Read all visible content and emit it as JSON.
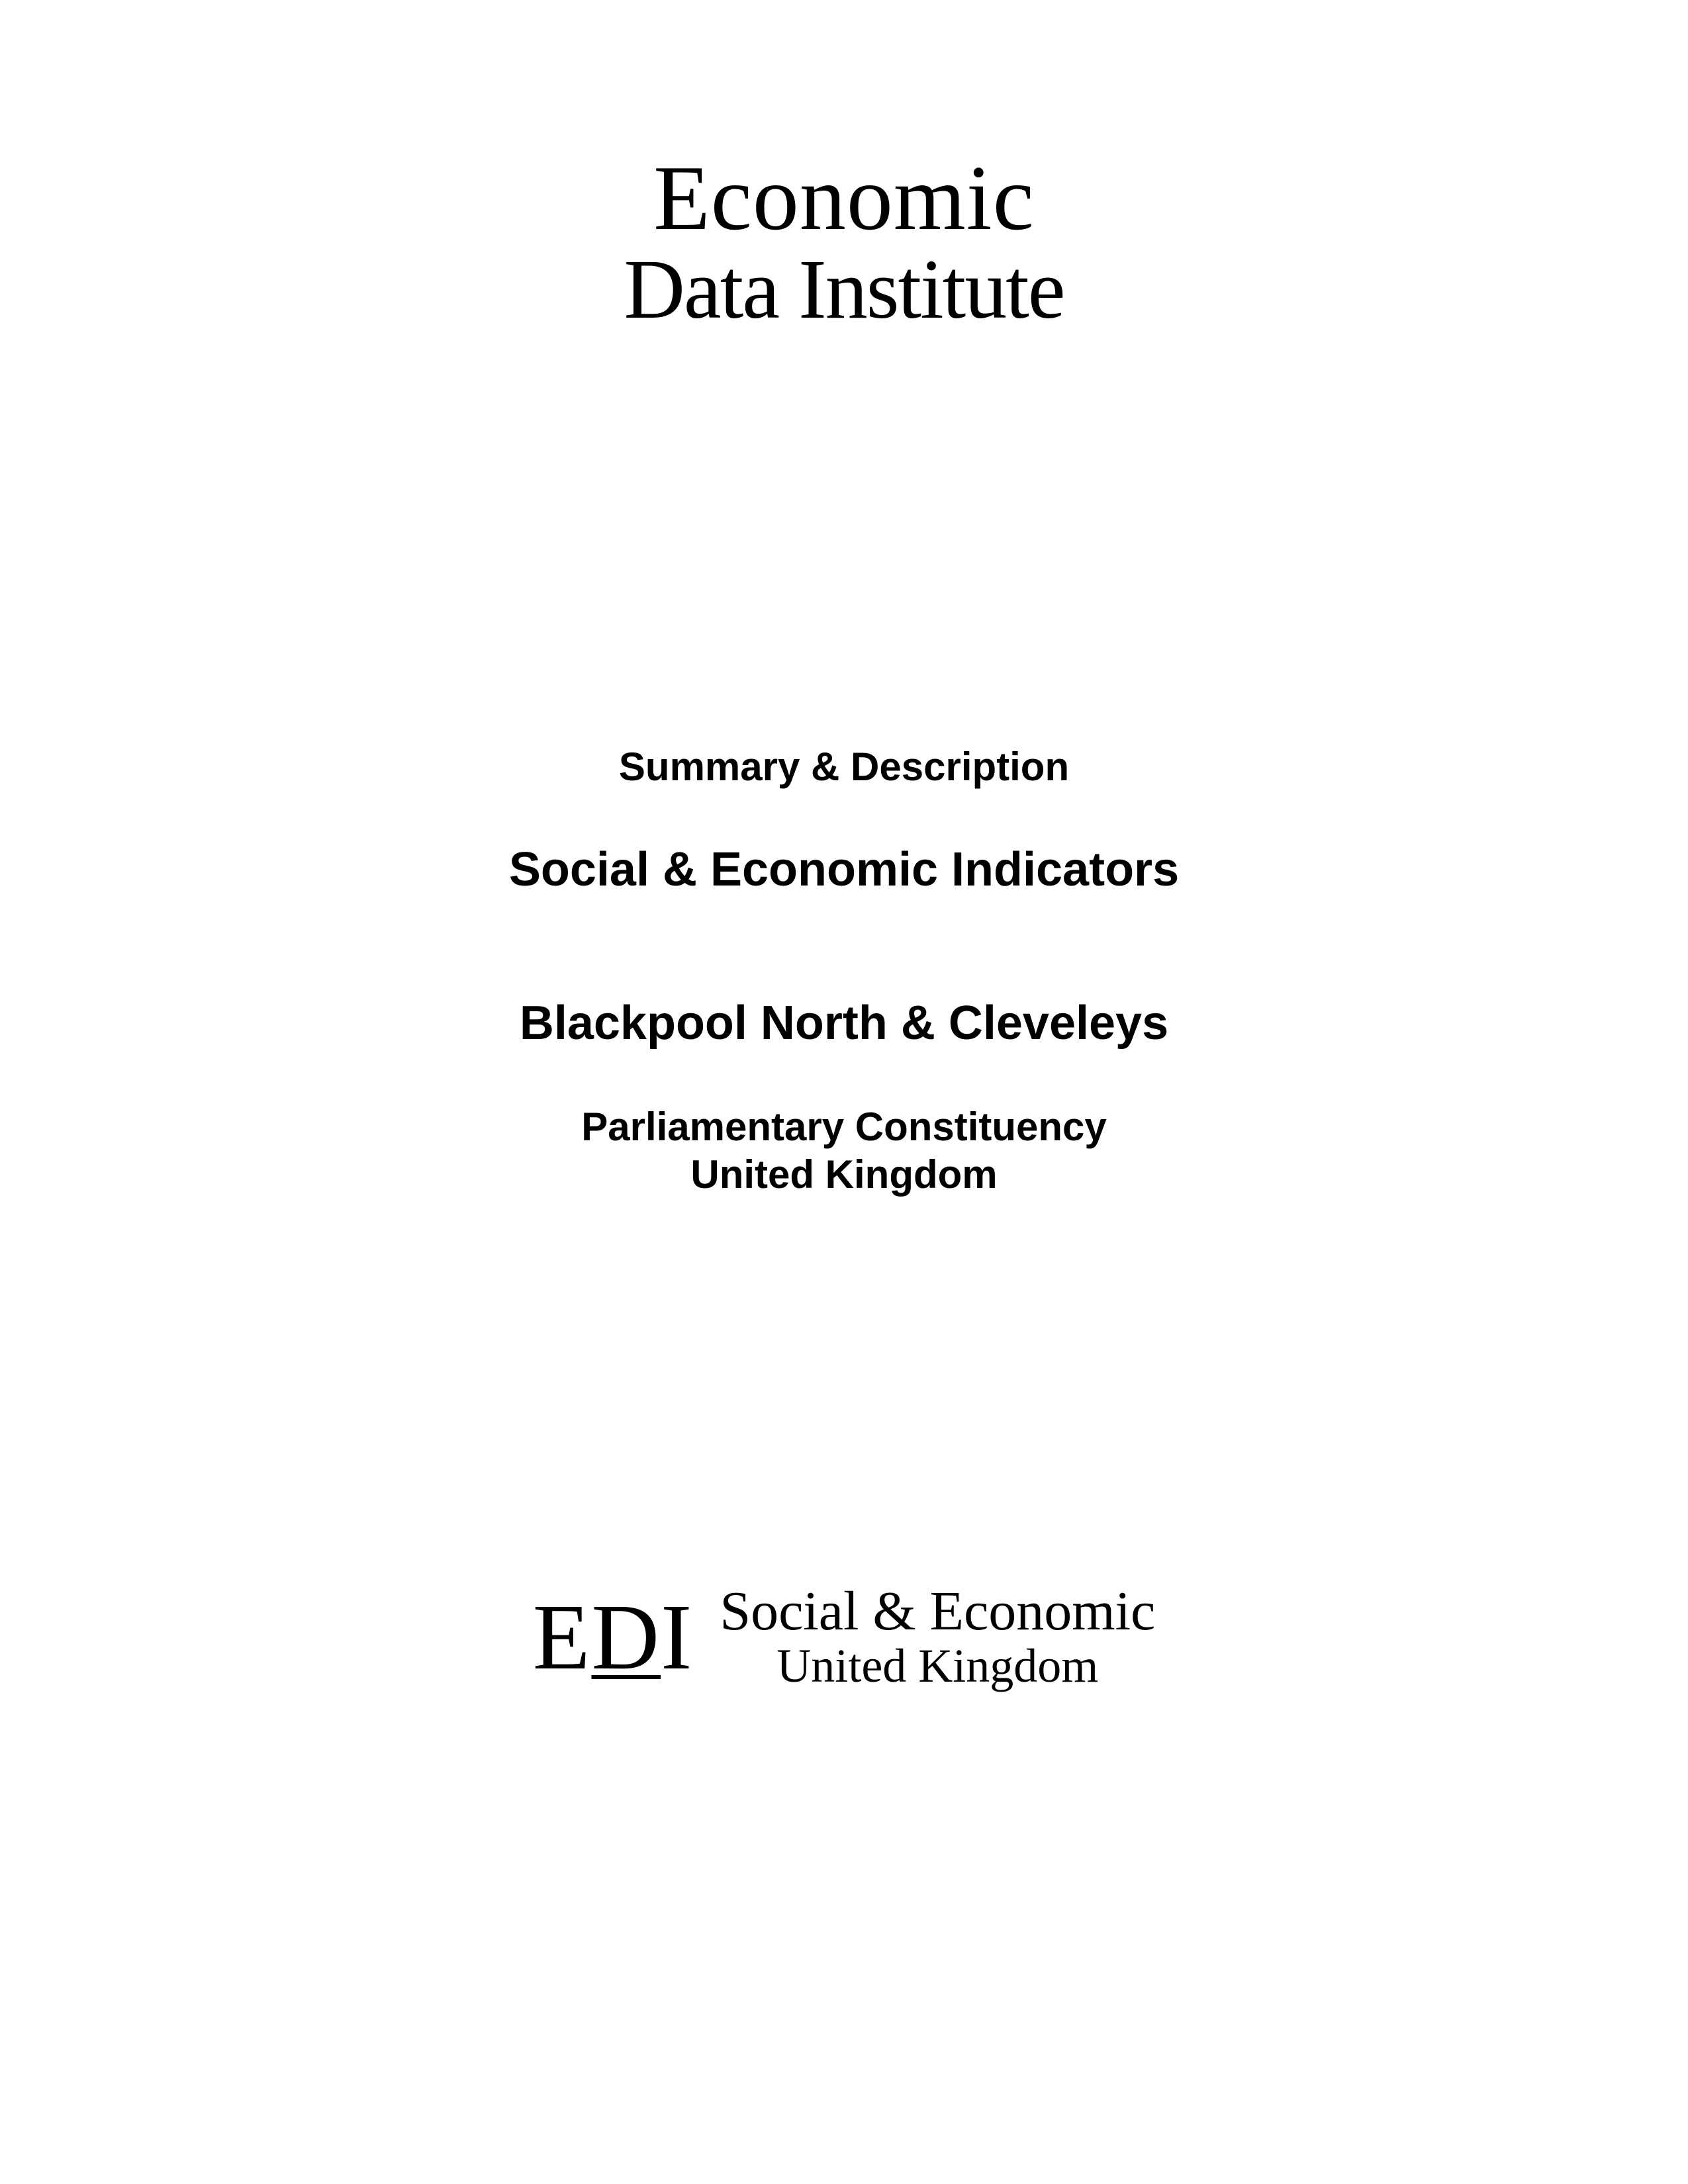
{
  "logo_top": {
    "line1": "Economic",
    "line2": "Data Institute"
  },
  "subtitle_summary": "Summary & Description",
  "title_main": "Social & Economic Indicators",
  "title_location": "Blackpool North & Cleveleys",
  "subtitle_constituency_line1": "Parliamentary Constituency",
  "subtitle_constituency_line2": "United Kingdom",
  "logo_bottom": {
    "abbrev_prefix": "E",
    "abbrev_underlined": "D",
    "abbrev_suffix": "I",
    "line1": "Social & Economic",
    "line2": "United Kingdom"
  },
  "colors": {
    "background": "#ffffff",
    "text": "#000000"
  }
}
